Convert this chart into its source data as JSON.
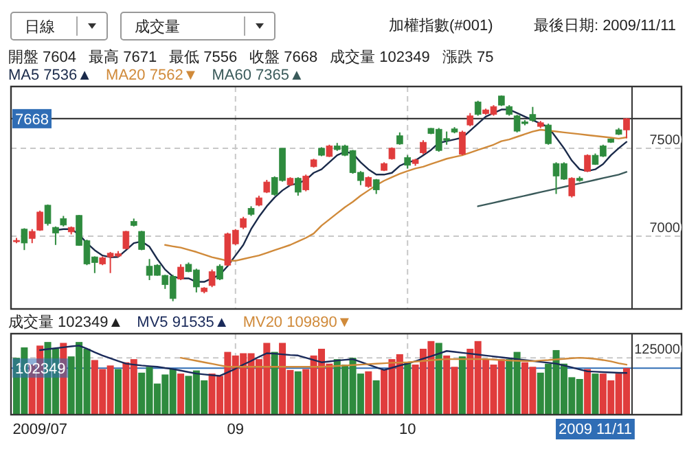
{
  "chart_data": [
    {
      "type": "candlestick",
      "title": "加權指數(#001)",
      "subtitle": "最後日期: 2009/11/11",
      "annotations": [
        "日線",
        "成交量",
        "開盤 7604",
        "最高 7671",
        "最低 7556",
        "收盤 7668",
        "成交量 102349",
        "漲跌 75"
      ],
      "categories": [
        null,
        null,
        null,
        null,
        null,
        null,
        null,
        null,
        null,
        null,
        null,
        null,
        null,
        null,
        null,
        null,
        null,
        null,
        null,
        null,
        null,
        null,
        null,
        null,
        null,
        null,
        null,
        null,
        null,
        null,
        null,
        null,
        null,
        null,
        null,
        null,
        null,
        null,
        null,
        null,
        null,
        null,
        null,
        null,
        null,
        null,
        null,
        null,
        null,
        null,
        null,
        null,
        null,
        null,
        null,
        null,
        null,
        null,
        null,
        null,
        null,
        null,
        null,
        null,
        null,
        null,
        null,
        null,
        null,
        null,
        null,
        null,
        null,
        null,
        null,
        null,
        null,
        null,
        null
      ],
      "ohlc": [
        [
          6972,
          6990,
          6960,
          6976
        ],
        [
          7040,
          7045,
          6921,
          6961
        ],
        [
          6987,
          7040,
          6960,
          7027
        ],
        [
          7034,
          7145,
          7030,
          7137
        ],
        [
          7176,
          7180,
          7060,
          7071
        ],
        [
          7050,
          7055,
          6950,
          7018
        ],
        [
          7100,
          7115,
          7055,
          7063
        ],
        [
          7024,
          7055,
          7010,
          7050
        ],
        [
          7118,
          7120,
          6945,
          6947
        ],
        [
          6974,
          6980,
          6835,
          6842
        ],
        [
          6882,
          6885,
          6790,
          6850
        ],
        [
          6842,
          6885,
          6835,
          6877
        ],
        [
          6882,
          6910,
          6790,
          6903
        ],
        [
          6887,
          6915,
          6880,
          6900
        ],
        [
          6929,
          7030,
          6925,
          7027
        ],
        [
          7084,
          7100,
          7055,
          7061
        ],
        [
          7027,
          7030,
          6920,
          6924
        ],
        [
          6829,
          6870,
          6750,
          6777
        ],
        [
          6835,
          6840,
          6775,
          6777
        ],
        [
          6777,
          6780,
          6700,
          6724
        ],
        [
          6771,
          6780,
          6630,
          6645
        ],
        [
          6756,
          6840,
          6750,
          6824
        ],
        [
          6840,
          6850,
          6795,
          6798
        ],
        [
          6808,
          6815,
          6680,
          6711
        ],
        [
          6684,
          6710,
          6675,
          6705
        ],
        [
          6719,
          6810,
          6710,
          6798
        ],
        [
          6829,
          6840,
          6750,
          6756
        ],
        [
          6835,
          7020,
          6830,
          7013
        ],
        [
          6956,
          7040,
          6950,
          7034
        ],
        [
          7050,
          7110,
          7040,
          7100
        ],
        [
          7158,
          7170,
          7115,
          7124
        ],
        [
          7176,
          7230,
          7170,
          7218
        ],
        [
          7250,
          7320,
          7245,
          7308
        ],
        [
          7334,
          7340,
          7230,
          7237
        ],
        [
          7500,
          7500,
          7310,
          7316
        ],
        [
          7292,
          7335,
          7285,
          7329
        ],
        [
          7329,
          7335,
          7230,
          7250
        ],
        [
          7263,
          7350,
          7255,
          7342
        ],
        [
          7395,
          7440,
          7390,
          7434
        ],
        [
          7500,
          7505,
          7455,
          7460
        ],
        [
          7453,
          7520,
          7450,
          7513
        ],
        [
          7513,
          7530,
          7485,
          7492
        ],
        [
          7513,
          7520,
          7455,
          7460
        ],
        [
          7487,
          7490,
          7355,
          7361
        ],
        [
          7363,
          7370,
          7290,
          7316
        ],
        [
          7282,
          7340,
          7275,
          7334
        ],
        [
          7321,
          7325,
          7240,
          7263
        ],
        [
          7374,
          7420,
          7370,
          7413
        ],
        [
          7440,
          7505,
          7435,
          7500
        ],
        [
          7571,
          7590,
          7520,
          7524
        ],
        [
          7447,
          7460,
          7385,
          7403
        ],
        [
          7413,
          7440,
          7400,
          7434
        ],
        [
          7474,
          7545,
          7465,
          7534
        ],
        [
          7613,
          7615,
          7580,
          7584
        ],
        [
          7608,
          7615,
          7480,
          7487
        ],
        [
          7555,
          7595,
          7520,
          7545
        ],
        [
          7610,
          7620,
          7585,
          7592
        ],
        [
          7466,
          7600,
          7460,
          7592
        ],
        [
          7632,
          7700,
          7625,
          7684
        ],
        [
          7763,
          7770,
          7685,
          7692
        ],
        [
          7697,
          7725,
          7690,
          7718
        ],
        [
          7692,
          7745,
          7685,
          7737
        ],
        [
          7797,
          7800,
          7740,
          7745
        ],
        [
          7737,
          7745,
          7685,
          7692
        ],
        [
          7684,
          7690,
          7590,
          7597
        ],
        [
          7650,
          7660,
          7630,
          7640
        ],
        [
          7692,
          7735,
          7650,
          7658
        ],
        [
          7624,
          7655,
          7615,
          7645
        ],
        [
          7632,
          7640,
          7520,
          7526
        ],
        [
          7413,
          7420,
          7240,
          7342
        ],
        [
          7413,
          7420,
          7320,
          7324
        ],
        [
          7229,
          7335,
          7220,
          7329
        ],
        [
          7329,
          7340,
          7310,
          7316
        ],
        [
          7368,
          7465,
          7365,
          7460
        ],
        [
          7460,
          7470,
          7405,
          7408
        ],
        [
          7513,
          7520,
          7450,
          7455
        ],
        [
          7553,
          7555,
          7530,
          7534
        ],
        [
          7605,
          7615,
          7575,
          7579
        ],
        [
          7604,
          7671,
          7556,
          7668
        ]
      ],
      "colors": [
        "#e03c3c",
        "#2e8b3e",
        "#e03c3c",
        "#e03c3c",
        "#2e8b3e",
        "#2e8b3e",
        "#2e8b3e",
        "#e03c3c",
        "#2e8b3e",
        "#2e8b3e",
        "#2e8b3e",
        "#e03c3c",
        "#e03c3c",
        "#e03c3c",
        "#e03c3c",
        "#2e8b3e",
        "#2e8b3e",
        "#2e8b3e",
        "#2e8b3e",
        "#2e8b3e",
        "#2e8b3e",
        "#e03c3c",
        "#2e8b3e",
        "#2e8b3e",
        "#e03c3c",
        "#e03c3c",
        "#2e8b3e",
        "#e03c3c",
        "#e03c3c",
        "#e03c3c",
        "#2e8b3e",
        "#e03c3c",
        "#e03c3c",
        "#2e8b3e",
        "#2e8b3e",
        "#e03c3c",
        "#2e8b3e",
        "#e03c3c",
        "#e03c3c",
        "#2e8b3e",
        "#e03c3c",
        "#2e8b3e",
        "#2e8b3e",
        "#2e8b3e",
        "#2e8b3e",
        "#e03c3c",
        "#2e8b3e",
        "#e03c3c",
        "#e03c3c",
        "#2e8b3e",
        "#2e8b3e",
        "#e03c3c",
        "#e03c3c",
        "#2e8b3e",
        "#2e8b3e",
        "#2e8b3e",
        "#2e8b3e",
        "#e03c3c",
        "#e03c3c",
        "#2e8b3e",
        "#e03c3c",
        "#e03c3c",
        "#2e8b3e",
        "#2e8b3e",
        "#2e8b3e",
        "#2e8b3e",
        "#2e8b3e",
        "#e03c3c",
        "#2e8b3e",
        "#2e8b3e",
        "#2e8b3e",
        "#e03c3c",
        "#2e8b3e",
        "#e03c3c",
        "#2e8b3e",
        "#2e8b3e",
        "#2e8b3e",
        "#2e8b3e",
        "#e03c3c"
      ],
      "series": [
        {
          "name": "MA5 7536▲",
          "type": "line",
          "color": "#1a2a4a",
          "values": [
            null,
            null,
            null,
            null,
            null,
            7034,
            7040,
            7040,
            7010,
            6960,
            6920,
            6890,
            6880,
            6882,
            6920,
            6960,
            6970,
            6940,
            6870,
            6810,
            6770,
            6760,
            6760,
            6740,
            6740,
            6760,
            6780,
            6830,
            6890,
            6950,
            7040,
            7110,
            7170,
            7220,
            7260,
            7290,
            7300,
            7320,
            7360,
            7380,
            7420,
            7460,
            7480,
            7470,
            7420,
            7380,
            7350,
            7350,
            7360,
            7400,
            7420,
            7430,
            7460,
            7490,
            7530,
            7540,
            7550,
            7560,
            7600,
            7640,
            7680,
            7700,
            7720,
            7720,
            7700,
            7680,
            7660,
            7640,
            7620,
            7560,
            7500,
            7430,
            7380,
            7370,
            7380,
            7410,
            7460,
            7500,
            7536
          ]
        },
        {
          "name": "MA20 7562▼",
          "type": "line",
          "color": "#d08a3a",
          "values": [
            null,
            null,
            null,
            null,
            null,
            null,
            null,
            null,
            null,
            null,
            null,
            null,
            null,
            null,
            null,
            null,
            null,
            null,
            null,
            6950,
            6942,
            6935,
            6922,
            6910,
            6895,
            6880,
            6870,
            6860,
            6860,
            6870,
            6880,
            6890,
            6905,
            6920,
            6935,
            6950,
            6970,
            6990,
            7015,
            7060,
            7095,
            7130,
            7165,
            7195,
            7230,
            7260,
            7290,
            7315,
            7335,
            7355,
            7370,
            7385,
            7395,
            7410,
            7425,
            7440,
            7450,
            7460,
            7475,
            7490,
            7505,
            7520,
            7540,
            7550,
            7565,
            7580,
            7595,
            7605,
            7600,
            7595,
            7590,
            7585,
            7580,
            7575,
            7570,
            7565,
            7560,
            7555,
            7562
          ]
        },
        {
          "name": "MA60 7365▲",
          "type": "line",
          "color": "#3a5a5a",
          "values": [
            null,
            null,
            null,
            null,
            null,
            null,
            null,
            null,
            null,
            null,
            null,
            null,
            null,
            null,
            null,
            null,
            null,
            null,
            null,
            null,
            null,
            null,
            null,
            null,
            null,
            null,
            null,
            null,
            null,
            null,
            null,
            null,
            null,
            null,
            null,
            null,
            null,
            null,
            null,
            null,
            null,
            null,
            null,
            null,
            null,
            null,
            null,
            null,
            null,
            null,
            null,
            null,
            null,
            null,
            null,
            null,
            null,
            null,
            null,
            7170,
            7180,
            7190,
            7200,
            7210,
            7220,
            7230,
            7240,
            7250,
            7260,
            7270,
            7280,
            7290,
            7300,
            7310,
            7320,
            7330,
            7340,
            7350,
            7365
          ]
        }
      ],
      "ylim": [
        6586,
        7851
      ],
      "yticks": [
        7000,
        7500
      ],
      "ref_lines": [
        {
          "axis": "y",
          "value": 7668,
          "label": "7668",
          "color": "#222222"
        }
      ],
      "grid": true,
      "legend": "top left",
      "tick_labels": "y"
    },
    {
      "type": "bar",
      "annotations": [
        "成交量 102349▲"
      ],
      "categories": [
        null,
        null,
        null,
        "2009/07",
        null,
        null,
        null,
        null,
        null,
        null,
        null,
        null,
        null,
        null,
        null,
        null,
        null,
        null,
        null,
        null,
        null,
        null,
        null,
        null,
        null,
        null,
        null,
        null,
        "09",
        null,
        null,
        null,
        null,
        null,
        null,
        null,
        null,
        null,
        null,
        null,
        null,
        null,
        null,
        null,
        null,
        null,
        null,
        null,
        null,
        null,
        "10",
        null,
        null,
        null,
        null,
        null,
        null,
        null,
        null,
        null,
        null,
        null,
        null,
        null,
        null,
        null,
        null,
        null,
        null,
        null,
        null,
        null,
        null,
        null,
        "2009 11/11",
        null,
        null,
        null,
        null
      ],
      "series": [
        {
          "values": [
            125000,
            147800,
            110100,
            151800,
            159700,
            144800,
            157700,
            128000,
            159700,
            144800,
            120000,
            100200,
            108100,
            100200,
            115100,
            122000,
            92300,
            105200,
            68400,
            88300,
            100200,
            90300,
            85300,
            97200,
            75400,
            90300,
            85300,
            137900,
            130000,
            135000,
            135000,
            122000,
            157700,
            137900,
            157700,
            98200,
            95200,
            100200,
            130000,
            144800,
            112100,
            122000,
            110100,
            125000,
            90300,
            95200,
            75400,
            98200,
            122000,
            132900,
            115100,
            110100,
            144800,
            161700,
            157700,
            130000,
            105200,
            128000,
            144800,
            161700,
            122000,
            110100,
            122000,
            122000,
            137900,
            115100,
            105200,
            92300,
            112100,
            141900,
            112100,
            82300,
            78400,
            100200,
            90300,
            90300,
            75400,
            90300,
            102349
          ],
          "colors": [
            "#2e8b3e",
            "#2e8b3e",
            "#e03c3c",
            "#e03c3c",
            "#2e8b3e",
            "#2e8b3e",
            "#e03c3c",
            "#2e8b3e",
            "#2e8b3e",
            "#2e8b3e",
            "#e03c3c",
            "#e03c3c",
            "#e03c3c",
            "#2e8b3e",
            "#e03c3c",
            "#e03c3c",
            "#2e8b3e",
            "#2e8b3e",
            "#2e8b3e",
            "#2e8b3e",
            "#2e8b3e",
            "#e03c3c",
            "#2e8b3e",
            "#2e8b3e",
            "#2e8b3e",
            "#e03c3c",
            "#e03c3c",
            "#e03c3c",
            "#e03c3c",
            "#e03c3c",
            "#e03c3c",
            "#e03c3c",
            "#e03c3c",
            "#2e8b3e",
            "#e03c3c",
            "#e03c3c",
            "#2e8b3e",
            "#e03c3c",
            "#e03c3c",
            "#e03c3c",
            "#e03c3c",
            "#2e8b3e",
            "#2e8b3e",
            "#2e8b3e",
            "#2e8b3e",
            "#e03c3c",
            "#2e8b3e",
            "#e03c3c",
            "#e03c3c",
            "#e03c3c",
            "#2e8b3e",
            "#e03c3c",
            "#e03c3c",
            "#e03c3c",
            "#2e8b3e",
            "#e03c3c",
            "#e03c3c",
            "#2e8b3e",
            "#e03c3c",
            "#e03c3c",
            "#e03c3c",
            "#e03c3c",
            "#e03c3c",
            "#2e8b3e",
            "#2e8b3e",
            "#e03c3c",
            "#e03c3c",
            "#2e8b3e",
            "#2e8b3e",
            "#2e8b3e",
            "#2e8b3e",
            "#2e8b3e",
            "#2e8b3e",
            "#e03c3c",
            "#2e8b3e",
            "#e03c3c",
            "#e03c3c",
            "#e03c3c",
            "#e03c3c"
          ]
        },
        {
          "name": "MV5 91535▲",
          "type": "line",
          "color": "#1a2a5a",
          "values": [
            null,
            null,
            null,
            141900,
            144000,
            146000,
            148000,
            150000,
            151800,
            145000,
            137000,
            130000,
            124000,
            118000,
            112100,
            110000,
            108000,
            106500,
            105200,
            102500,
            100200,
            97000,
            93500,
            90300,
            88500,
            86800,
            85300,
            93000,
            101000,
            110100,
            118000,
            127000,
            135000,
            134000,
            132500,
            131000,
            130000,
            125000,
            120000,
            115100,
            117000,
            119000,
            120500,
            122000,
            116000,
            110000,
            104000,
            98200,
            103000,
            108000,
            112100,
            117500,
            123000,
            128500,
            134000,
            139900,
            138000,
            136000,
            134000,
            132000,
            130000,
            128000,
            126000,
            124000,
            122000,
            120000,
            118000,
            116000,
            114000,
            112100,
            108000,
            104000,
            99500,
            95200,
            94500,
            93500,
            92800,
            92000,
            91535
          ]
        },
        {
          "name": "MV20 109890▼",
          "type": "line",
          "color": "#d08a3a",
          "values": [
            null,
            null,
            null,
            null,
            null,
            null,
            null,
            null,
            null,
            null,
            null,
            null,
            null,
            null,
            null,
            null,
            null,
            null,
            null,
            null,
            null,
            125000,
            121700,
            118400,
            115100,
            111800,
            108500,
            105200,
            105200,
            105200,
            105200,
            105200,
            105200,
            105200,
            105200,
            105200,
            105200,
            105200,
            105200,
            105200,
            106000,
            107000,
            108000,
            109000,
            110000,
            111000,
            112000,
            113000,
            114000,
            114500,
            115100,
            116500,
            118000,
            119500,
            121000,
            122000,
            122000,
            122000,
            122000,
            122000,
            122000,
            121000,
            120000,
            119000,
            118500,
            118000,
            117500,
            119000,
            120000,
            121500,
            122500,
            124000,
            125000,
            124000,
            122500,
            120000,
            117000,
            113000,
            109890
          ]
        }
      ],
      "ylim": [
        0,
        178000
      ],
      "yticks": [
        125000
      ],
      "ref_lines": [
        {
          "axis": "y",
          "value": 102349,
          "label": "102349",
          "color": "#2f6db5"
        }
      ],
      "grid": true,
      "legend": "top left"
    }
  ]
}
